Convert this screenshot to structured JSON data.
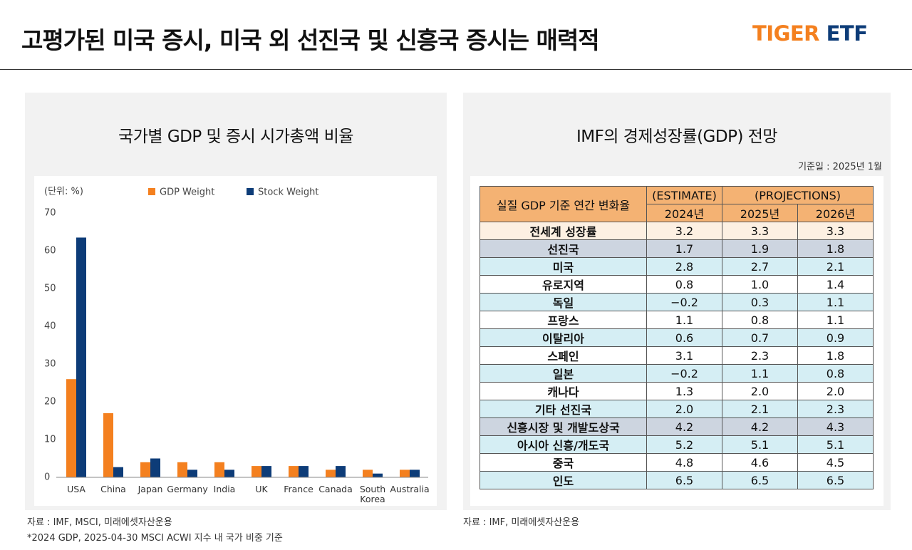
{
  "header": {
    "title": "고평가된 미국 증시, 미국 외 선진국 및 신흥국 증시는 매력적",
    "logo_brand": "TIGER",
    "logo_product": "ETF"
  },
  "chart_data": {
    "type": "bar",
    "title": "국가별 GDP 및 증시 시가총액 비율",
    "unit_label": "(단위: %)",
    "categories": [
      "USA",
      "China",
      "Japan",
      "Germany",
      "India",
      "UK",
      "France",
      "Canada",
      "South Korea",
      "Australia"
    ],
    "series": [
      {
        "name": "GDP Weight",
        "color": "#f4801f",
        "values": [
          26,
          17,
          4,
          4,
          4,
          3,
          3,
          2,
          2,
          2
        ]
      },
      {
        "name": "Stock Weight",
        "color": "#0d3c78",
        "values": [
          63.5,
          2.7,
          5,
          2,
          2,
          3,
          3,
          3,
          1,
          2
        ]
      }
    ],
    "ylim": [
      0,
      70
    ],
    "yticks": [
      0,
      10,
      20,
      30,
      40,
      50,
      60,
      70
    ],
    "grid": false,
    "legend": "top"
  },
  "left_notes": [
    "자료 : IMF, MSCI, 미래에셋자산운용",
    "*2024 GDP, 2025-04-30 MSCI ACWI 지수 내 국가 비중 기준"
  ],
  "table": {
    "title": "IMF의 경제성장률(GDP) 전망",
    "date_note": "기준일 : 2025년 1월",
    "header": {
      "label": "실질 GDP 기준 연간 변화율",
      "estimate": "(ESTIMATE)",
      "projections": "(PROJECTIONS)",
      "years": [
        "2024년",
        "2025년",
        "2026년"
      ]
    },
    "rows": [
      [
        "전세계 성장률",
        "3.2",
        "3.3",
        "3.3"
      ],
      [
        "선진국",
        "1.7",
        "1.9",
        "1.8"
      ],
      [
        "미국",
        "2.8",
        "2.7",
        "2.1"
      ],
      [
        "유로지역",
        "0.8",
        "1.0",
        "1.4"
      ],
      [
        "독일",
        "−0.2",
        "0.3",
        "1.1"
      ],
      [
        "프랑스",
        "1.1",
        "0.8",
        "1.1"
      ],
      [
        "이탈리아",
        "0.6",
        "0.7",
        "0.9"
      ],
      [
        "스페인",
        "3.1",
        "2.3",
        "1.8"
      ],
      [
        "일본",
        "−0.2",
        "1.1",
        "0.8"
      ],
      [
        "캐나다",
        "1.3",
        "2.0",
        "2.0"
      ],
      [
        "기타 선진국",
        "2.0",
        "2.1",
        "2.3"
      ],
      [
        "신흥시장 및 개발도상국",
        "4.2",
        "4.2",
        "4.3"
      ],
      [
        "아시아 신흥/개도국",
        "5.2",
        "5.1",
        "5.1"
      ],
      [
        "중국",
        "4.8",
        "4.6",
        "4.5"
      ],
      [
        "인도",
        "6.5",
        "6.5",
        "6.5"
      ]
    ]
  },
  "right_note": "자료 : IMF, 미래에셋자산운용"
}
